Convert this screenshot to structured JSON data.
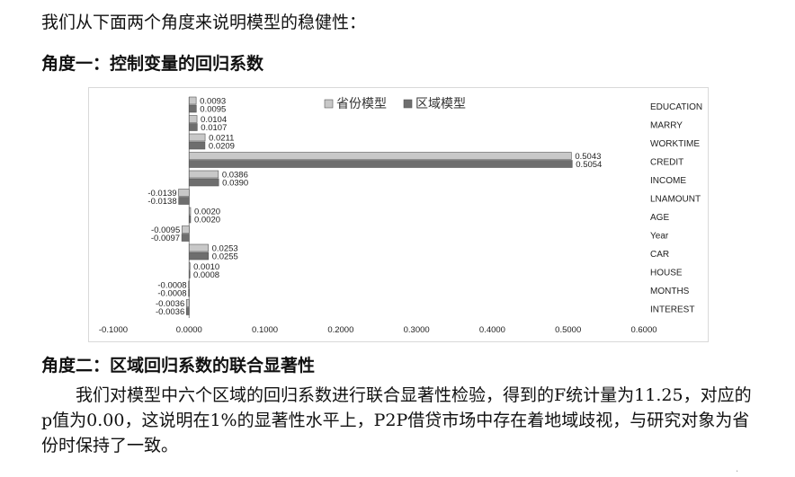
{
  "intro_text": "我们从下面两个角度来说明模型的稳健性：",
  "heading1": "角度一：控制变量的回归系数",
  "heading2": "角度二：区域回归系数的联合显著性",
  "paragraph": "　　我们对模型中六个区域的回归系数进行联合显著性检验，得到的F统计量为11.25，对应的p值为0.00，这说明在1%的显著性水平上，P2P借贷市场中存在着地域歧视，与研究对象为省份时保持了一致。",
  "chart_data": {
    "type": "bar",
    "orientation": "horizontal",
    "categories": [
      "EDUCATION",
      "MARRY",
      "WORKTIME",
      "CREDIT",
      "INCOME",
      "LNAMOUNT",
      "AGE",
      "Year",
      "CAR",
      "HOUSE",
      "MONTHS",
      "INTEREST"
    ],
    "series": [
      {
        "name": "省份模型",
        "color": "#c8c8c8",
        "values": [
          0.0093,
          0.0104,
          0.0211,
          0.5043,
          0.0386,
          -0.0139,
          0.002,
          -0.0095,
          0.0253,
          0.001,
          -0.0008,
          -0.0036
        ],
        "labels": [
          "0.0093",
          "0.0104",
          "0.0211",
          "0.5043",
          "0.0386",
          "-0.0139",
          "0.0020",
          "-0.0095",
          "0.0253",
          "0.0010",
          "-0.0008",
          "-0.0036"
        ]
      },
      {
        "name": "区域模型",
        "color": "#6e6e6e",
        "values": [
          0.0095,
          0.0107,
          0.0209,
          0.5054,
          0.039,
          -0.0138,
          0.002,
          -0.0097,
          0.0255,
          0.0008,
          -0.0008,
          -0.0036
        ],
        "labels": [
          "0.0095",
          "0.0107",
          "0.0209",
          "0.5054",
          "0.0390",
          "-0.0138",
          "0.0020",
          "-0.0097",
          "0.0255",
          "0.0008",
          "-0.0008",
          "-0.0036"
        ]
      }
    ],
    "xticks": [
      -0.1,
      0,
      0.1,
      0.2,
      0.3,
      0.4,
      0.5,
      0.6
    ],
    "xtick_labels": [
      "-0.1000",
      "0.0000",
      "0.1000",
      "0.2000",
      "0.3000",
      "0.4000",
      "0.5000",
      "0.6000"
    ],
    "xlim": [
      -0.1,
      0.6
    ],
    "grid": false,
    "legend_position": "top-center"
  }
}
